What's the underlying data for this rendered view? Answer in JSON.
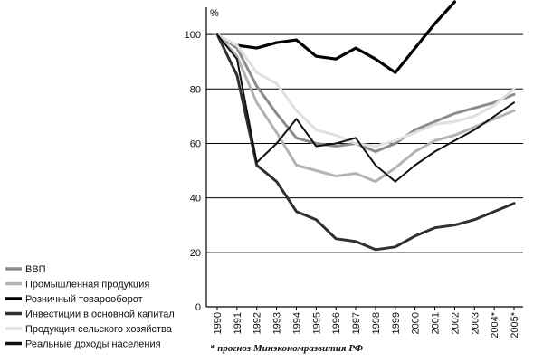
{
  "chart_data": {
    "type": "line",
    "ylabel": "%",
    "ylim": [
      0,
      110
    ],
    "y_ticks": [
      0,
      20,
      40,
      60,
      80,
      100
    ],
    "grid": "horizontal",
    "x": [
      1990,
      1991,
      1992,
      1993,
      1994,
      1995,
      1996,
      1997,
      1998,
      1999,
      2000,
      2001,
      2002,
      2003,
      2004,
      2005
    ],
    "x_labels": [
      "1990",
      "1991",
      "1992",
      "1993",
      "1994",
      "1995",
      "1996",
      "1997",
      "1998",
      "1999",
      "2000",
      "2001",
      "2002",
      "2003",
      "2004*",
      "2005*"
    ],
    "legend_position": "bottom-left",
    "series": [
      {
        "name": "ВВП",
        "color": "#8c8c8c",
        "values": [
          100,
          95,
          81,
          71,
          62,
          60,
          59,
          60,
          57,
          60,
          65,
          68,
          71,
          73,
          75,
          78
        ]
      },
      {
        "name": "Промышленная продукция",
        "color": "#b3b3b3",
        "values": [
          100,
          92,
          75,
          64,
          52,
          50,
          48,
          49,
          46,
          51,
          57,
          61,
          63,
          66,
          69,
          72
        ]
      },
      {
        "name": "Розничный товарооборот",
        "color": "#000000",
        "values": [
          null,
          96,
          95,
          97,
          98,
          92,
          91,
          95,
          91,
          86,
          95,
          104,
          112,
          null,
          null,
          null
        ]
      },
      {
        "name": "Инвестиции в основной капитал",
        "color": "#303030",
        "values": [
          100,
          85,
          52,
          46,
          35,
          32,
          25,
          24,
          21,
          22,
          26,
          29,
          30,
          32,
          35,
          38
        ]
      },
      {
        "name": "Продукция сельского хозяйства",
        "color": "#e0e0e0",
        "values": [
          100,
          96,
          86,
          82,
          72,
          65,
          63,
          60,
          59,
          61,
          64,
          67,
          68,
          70,
          74,
          80
        ]
      },
      {
        "name": "Реальные доходы населения",
        "color": "#111111",
        "values": [
          100,
          91,
          53,
          60,
          69,
          59,
          60,
          62,
          52,
          46,
          52,
          57,
          61,
          65,
          70,
          75
        ]
      }
    ],
    "footnote": "* прогноз Минэкономразвития РФ"
  }
}
